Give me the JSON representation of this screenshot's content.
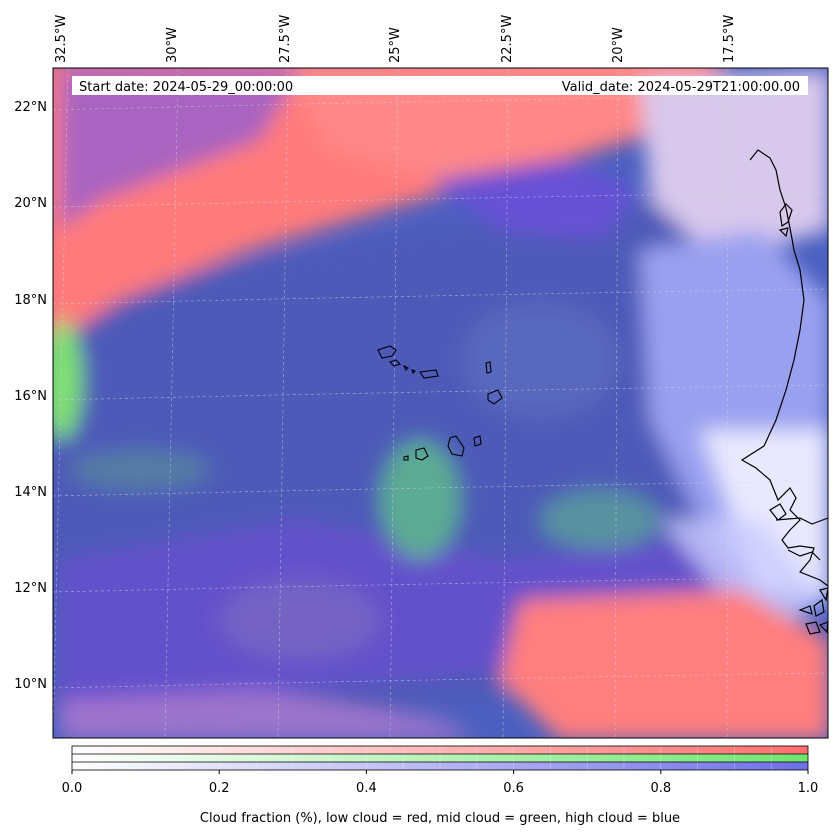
{
  "header": {
    "start_label": "Start date: 2024-05-29_00:00:00",
    "valid_label": "Valid_date: 2024-05-29T21:00:00.00"
  },
  "map": {
    "lon_ticks": [
      "32.5°W",
      "30°W",
      "27.5°W",
      "25°W",
      "22.5°W",
      "20°W",
      "17.5°W"
    ],
    "lat_ticks": [
      "22°N",
      "20°N",
      "18°N",
      "16°N",
      "14°N",
      "12°N",
      "10°N"
    ],
    "lon_range": [
      -33,
      -16
    ],
    "lat_range": [
      9,
      22.8
    ],
    "features": [
      "cape-verde-islands",
      "west-africa-coastline"
    ]
  },
  "colorbar": {
    "ticks": [
      "0.0",
      "0.2",
      "0.4",
      "0.6",
      "0.8",
      "1.0"
    ],
    "range": [
      0.0,
      1.0
    ],
    "bands": [
      {
        "name": "low cloud",
        "color": "#ff6e6e"
      },
      {
        "name": "mid cloud",
        "color": "#6ee66e"
      },
      {
        "name": "high cloud",
        "color": "#6e6ee6"
      }
    ],
    "caption": "Cloud fraction (%), low cloud = red, mid cloud = green, high cloud = blue"
  }
}
